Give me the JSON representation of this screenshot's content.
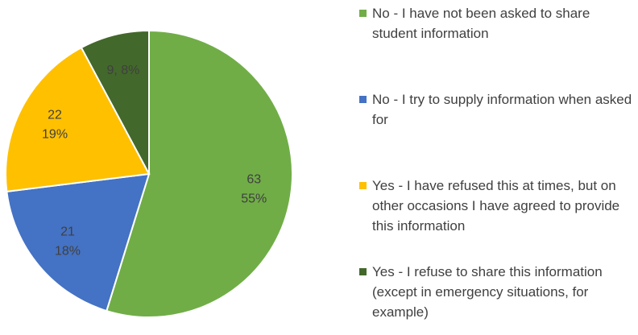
{
  "chart_data": {
    "type": "pie",
    "categories": [
      "No - I have not been asked to share student information",
      "No - I try to supply information when asked for",
      "Yes - I have refused this at times, but on other occasions I have agreed to provide this information",
      "Yes - I refuse to share this information (except in emergency situations, for example)"
    ],
    "values": [
      63,
      21,
      22,
      9
    ],
    "value_labels": [
      [
        "63",
        "55%"
      ],
      [
        "21",
        "18%"
      ],
      [
        "22",
        "19%"
      ],
      [
        "9, 8%"
      ]
    ],
    "colors": [
      "#70ad47",
      "#4472c4",
      "#ffc000",
      "#43682b"
    ],
    "legend": "right"
  }
}
